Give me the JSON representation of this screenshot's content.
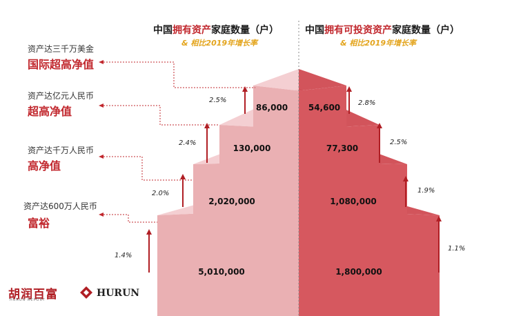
{
  "header_left": {
    "pre": "中国",
    "highlight": "拥有资产",
    "post": "家庭数量（户）"
  },
  "header_right": {
    "pre": "中国",
    "highlight": "拥有可投资资产",
    "post": "家庭数量（户）"
  },
  "subtitle": "& 相比2019年增长率",
  "tiers": [
    {
      "threshold": "资产达三千万美金",
      "name": "国际超高净值"
    },
    {
      "threshold": "资产达亿元人民币",
      "name": "超高净值"
    },
    {
      "threshold": "资产达千万人民币",
      "name": "高净值"
    },
    {
      "threshold": "资产达600万人民币",
      "name": "富裕"
    }
  ],
  "logo": {
    "cn": "胡润百富",
    "cn_sub": "HURUN REPORT",
    "en": "HURUN"
  },
  "colors": {
    "accent": "#c1272d",
    "gold": "#e3a41c"
  },
  "chart_data": {
    "type": "pyramid",
    "categories": [
      "国际超高净值",
      "超高净值",
      "高净值",
      "富裕"
    ],
    "series": [
      {
        "name": "中国拥有资产家庭数量（户）",
        "values": [
          86000,
          130000,
          2020000,
          5010000
        ],
        "labels": [
          "86,000",
          "130,000",
          "2,020,000",
          "5,010,000"
        ],
        "growth": [
          "2.5%",
          "2.4%",
          "2.0%",
          "1.4%"
        ]
      },
      {
        "name": "中国拥有可投资资产家庭数量（户）",
        "values": [
          54600,
          77300,
          1080000,
          1800000
        ],
        "labels": [
          "54,600",
          "77,300",
          "1,080,000",
          "1,800,000"
        ],
        "growth": [
          "2.8%",
          "2.5%",
          "1.9%",
          "1.1%"
        ]
      }
    ]
  }
}
